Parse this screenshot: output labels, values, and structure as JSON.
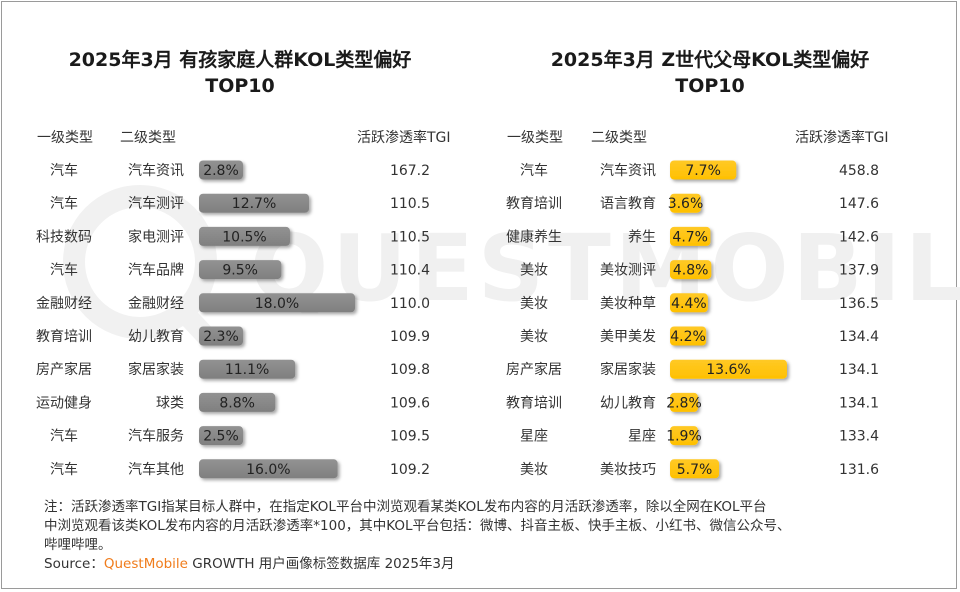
{
  "watermark": "QUESTMOBILE",
  "left": {
    "title_line1": "2025年3月 有孩家庭人群KOL类型偏好",
    "title_line2": "TOP10",
    "headers": {
      "level1": "一级类型",
      "level2": "二级类型",
      "tgi": "活跃渗透率TGI"
    }
  },
  "right": {
    "title_line1": "2025年3月 Z世代父母KOL类型偏好",
    "title_line2": "TOP10",
    "headers": {
      "level1": "一级类型",
      "level2": "二级类型",
      "tgi": "活跃渗透率TGI"
    }
  },
  "chart_data": [
    {
      "type": "bar",
      "title": "2025年3月 有孩家庭人群KOL类型偏好 TOP10",
      "level1": [
        "汽车",
        "汽车",
        "科技数码",
        "汽车",
        "金融财经",
        "教育培训",
        "房产家居",
        "运动健身",
        "汽车",
        "汽车"
      ],
      "categories": [
        "汽车资讯",
        "汽车测评",
        "家电测评",
        "汽车品牌",
        "金融财经",
        "幼儿教育",
        "家居家装",
        "球类",
        "汽车服务",
        "汽车其他"
      ],
      "values": [
        2.8,
        12.7,
        10.5,
        9.5,
        18.0,
        2.3,
        11.1,
        8.8,
        2.5,
        16.0
      ],
      "value_labels": [
        "2.8%",
        "12.7%",
        "10.5%",
        "9.5%",
        "18.0%",
        "2.3%",
        "11.1%",
        "8.8%",
        "2.5%",
        "16.0%"
      ],
      "tgi": [
        "167.2",
        "110.5",
        "110.5",
        "110.4",
        "110.0",
        "109.9",
        "109.8",
        "109.6",
        "109.5",
        "109.2"
      ],
      "bar_color": "#7f7f7f",
      "xlim": [
        0,
        18.0
      ]
    },
    {
      "type": "bar",
      "title": "2025年3月 Z世代父母KOL类型偏好 TOP10",
      "level1": [
        "汽车",
        "教育培训",
        "健康养生",
        "美妆",
        "美妆",
        "美妆",
        "房产家居",
        "教育培训",
        "星座",
        "美妆"
      ],
      "categories": [
        "汽车资讯",
        "语言教育",
        "养生",
        "美妆测评",
        "美妆种草",
        "美甲美发",
        "家居家装",
        "幼儿教育",
        "星座",
        "美妆技巧"
      ],
      "values": [
        7.7,
        3.6,
        4.7,
        4.8,
        4.4,
        4.2,
        13.6,
        2.8,
        1.9,
        5.7
      ],
      "value_labels": [
        "7.7%",
        "3.6%",
        "4.7%",
        "4.8%",
        "4.4%",
        "4.2%",
        "13.6%",
        "2.8%",
        "1.9%",
        "5.7%"
      ],
      "tgi": [
        "458.8",
        "147.6",
        "142.6",
        "137.9",
        "136.5",
        "134.4",
        "134.1",
        "134.1",
        "133.4",
        "131.6"
      ],
      "bar_color": "#ffc000",
      "xlim": [
        0,
        13.6
      ]
    }
  ],
  "footnote": {
    "line1": "注：活跃渗透率TGI指某目标人群中，在指定KOL平台中浏览观看某类KOL发布内容的月活跃渗透率，除以全网在KOL平台",
    "line2": "中浏览观看该类KOL发布内容的月活跃渗透率*100，其中KOL平台包括：微博、抖音主板、快手主板、小红书、微信公众号、",
    "line3": "哔哩哔哩。",
    "source_label": "Source：",
    "source_brand": "QuestMobile",
    "source_rest": " GROWTH 用户画像标签数据库 2025年3月"
  }
}
